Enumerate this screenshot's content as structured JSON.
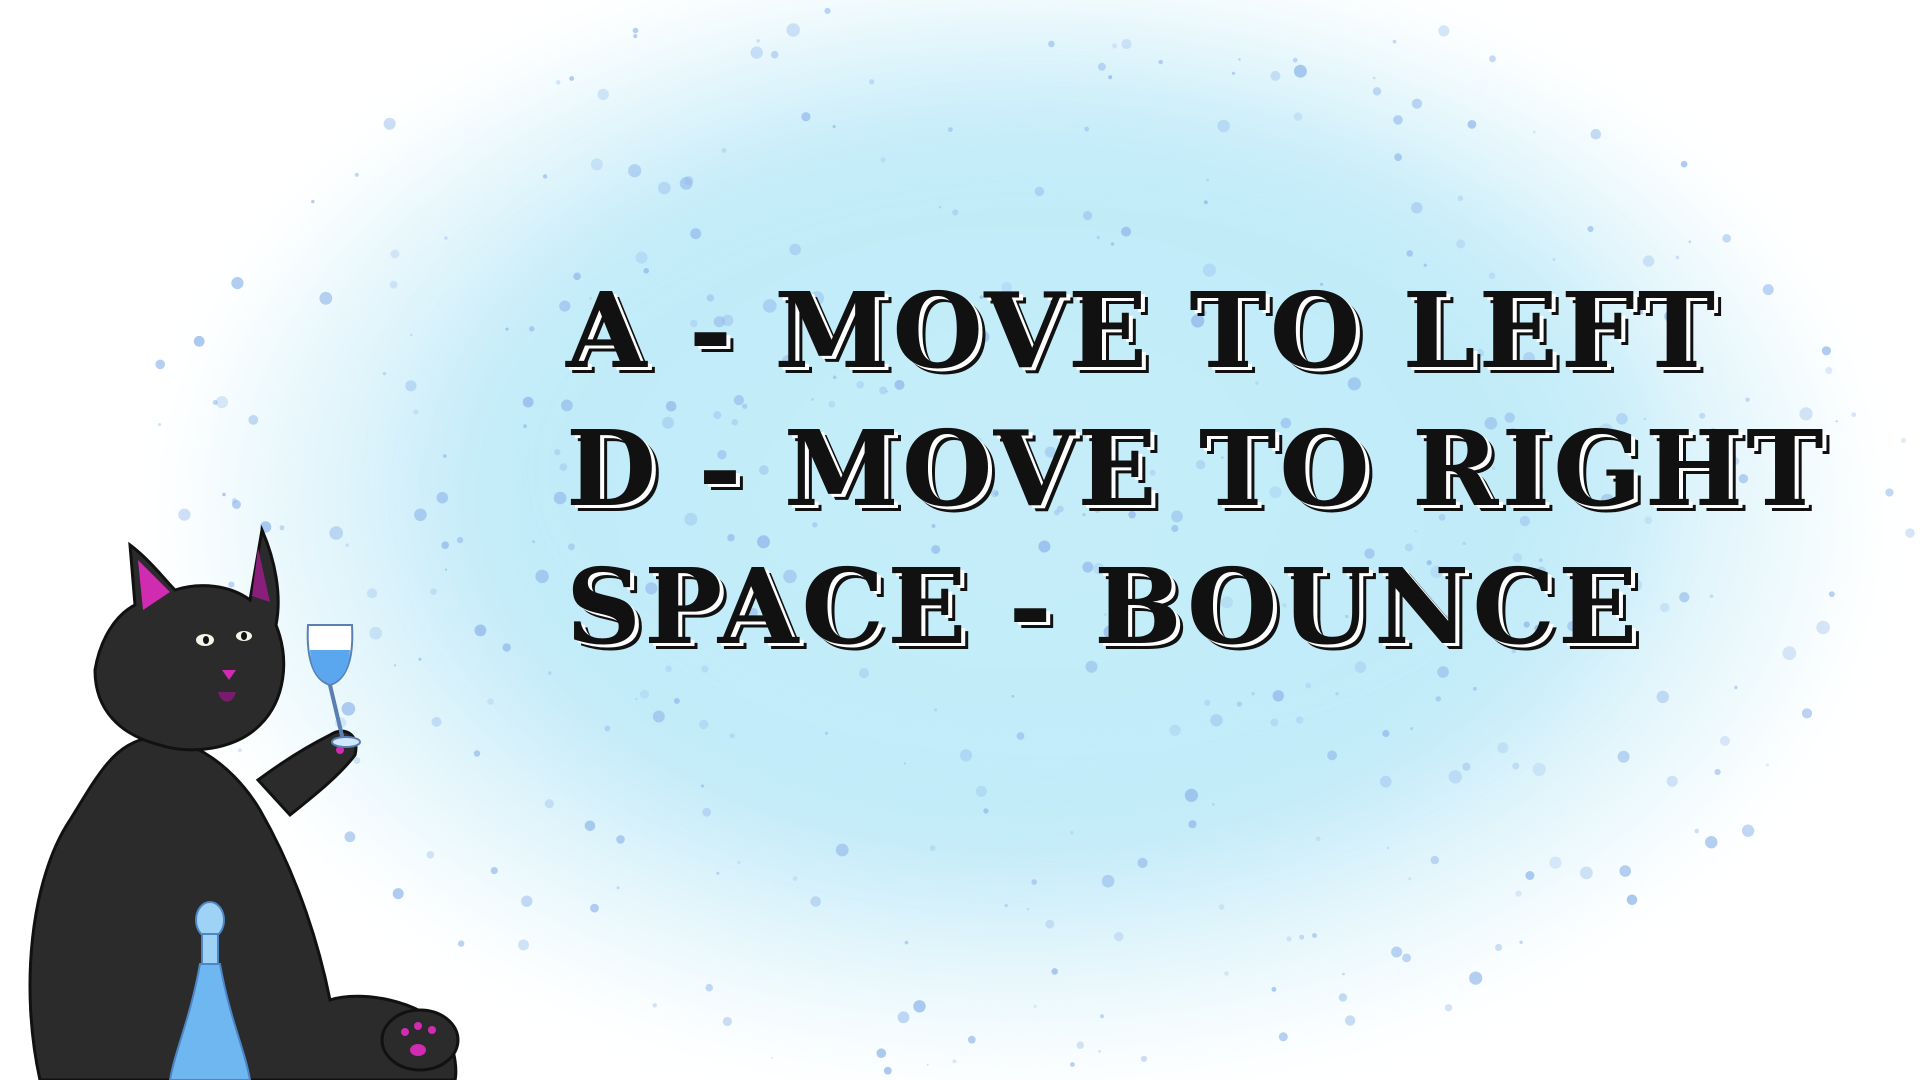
{
  "controls": [
    {
      "key": "A",
      "separator": "-",
      "action": "MOVE TO LEFT",
      "text": "A - MOVE TO LEFT"
    },
    {
      "key": "D",
      "separator": "-",
      "action": "MOVE TO RIGHT",
      "text": "D - MOVE TO RIGHT"
    },
    {
      "key": "SPACE",
      "separator": "-",
      "action": "BOUNCE",
      "text": "SPACE - BOUNCE"
    }
  ],
  "colors": {
    "background": "#ffffff",
    "splash_light": "#d6f3fb",
    "splash_mid": "#b3e6f6",
    "splash_dots": "#8fb6ea",
    "text": "#111111",
    "cat_fur": "#2b2b2b",
    "ear_accent": "#d12bb2",
    "glass_liquid": "#5aa7ef"
  },
  "illustration": {
    "character": "black-cat-icon",
    "held_item": "wine-glass-icon",
    "bottle": "bottle-icon"
  }
}
